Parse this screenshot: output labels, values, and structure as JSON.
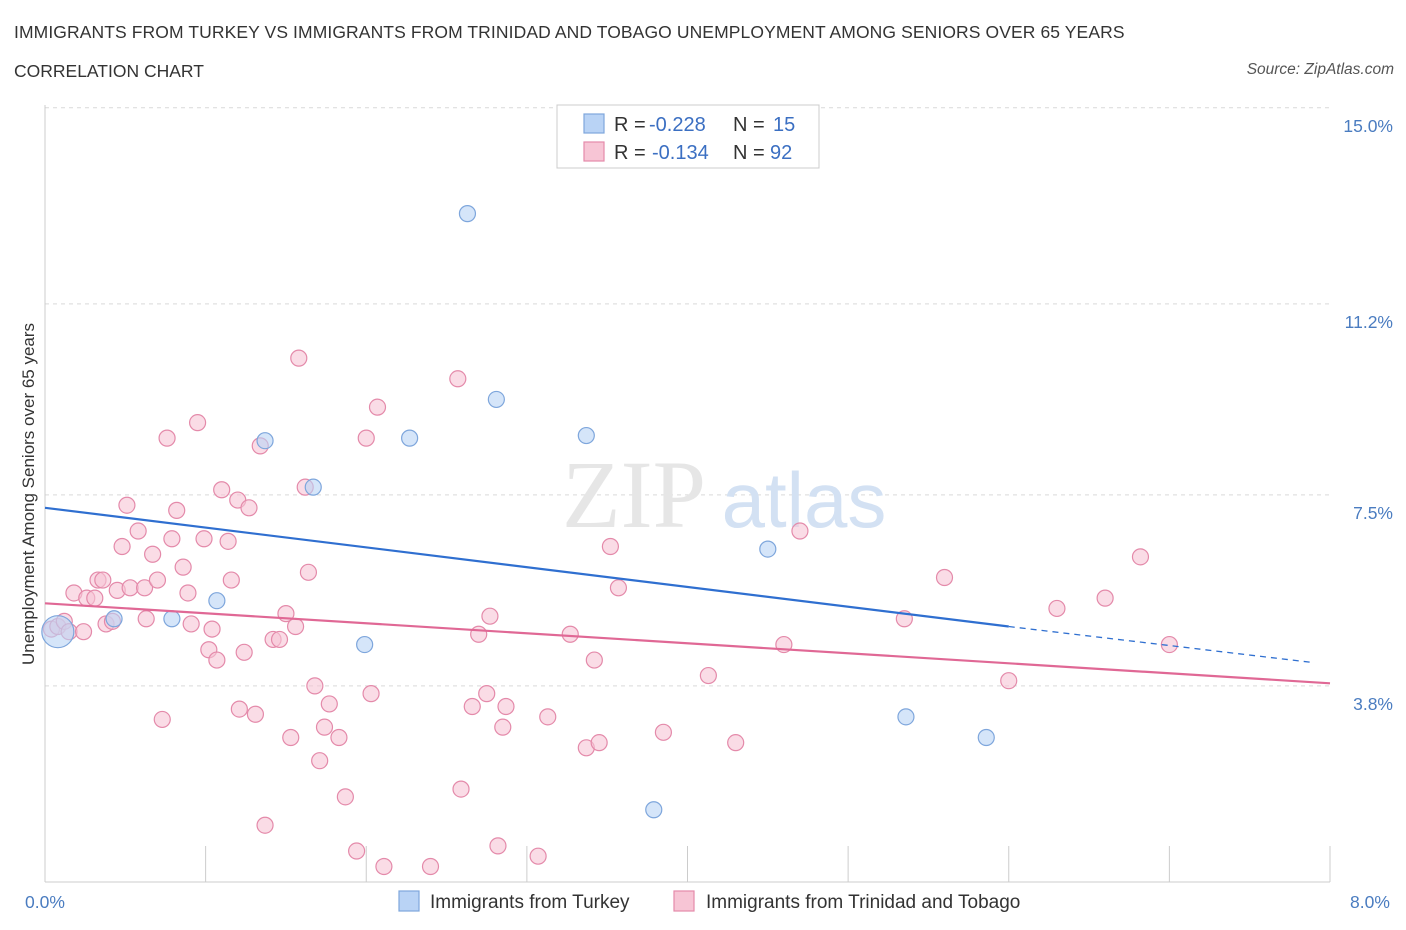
{
  "header": {
    "title": "IMMIGRANTS FROM TURKEY VS IMMIGRANTS FROM TRINIDAD AND TOBAGO UNEMPLOYMENT AMONG SENIORS OVER 65 YEARS",
    "subtitle": "CORRELATION CHART",
    "source": "Source: ZipAtlas.com"
  },
  "watermark": {
    "zip": "ZIP",
    "atlas": "atlas"
  },
  "colors": {
    "turkey_fill": "#b9d3f5",
    "turkey_stroke": "#7ea6dc",
    "turkey_line": "#2f6fd0",
    "trinidad_fill": "#f7c5d5",
    "trinidad_stroke": "#e48aaa",
    "trinidad_line": "#e06895",
    "grid": "#d9d9d9",
    "axis_text": "#4a7cc0"
  },
  "legend": {
    "rows": [
      {
        "r_label": "R =",
        "r_value": "-0.228",
        "n_label": "N =",
        "n_value": "15"
      },
      {
        "r_label": "R =",
        "r_value": "-0.134",
        "n_label": "N =",
        "n_value": "92"
      }
    ]
  },
  "chart_data": {
    "type": "scatter",
    "title": "IMMIGRANTS FROM TURKEY VS IMMIGRANTS FROM TRINIDAD AND TOBAGO UNEMPLOYMENT AMONG SENIORS OVER 65 YEARS",
    "subtitle": "CORRELATION CHART",
    "xlabel": "",
    "ylabel": "Unemployment Among Seniors over 65 years",
    "xlim": [
      0,
      8
    ],
    "ylim": [
      0,
      15.5
    ],
    "x_tick_labels": [
      "0.0%",
      "8.0%"
    ],
    "y_ticks": [
      3.8,
      7.5,
      11.2,
      15.0
    ],
    "y_tick_labels": [
      "3.8%",
      "7.5%",
      "11.2%",
      "15.0%"
    ],
    "legend_position": "top-center",
    "series": [
      {
        "name": "Immigrants from Turkey",
        "R": -0.228,
        "N": 15,
        "trend": {
          "x": [
            0,
            6.0
          ],
          "y": [
            7.25,
            4.95
          ],
          "dashed_to": [
            7.9,
            4.25
          ]
        },
        "points": [
          {
            "x": 0.08,
            "y": 4.85,
            "big": true
          },
          {
            "x": 0.43,
            "y": 5.1
          },
          {
            "x": 0.79,
            "y": 5.1
          },
          {
            "x": 1.07,
            "y": 5.45
          },
          {
            "x": 1.37,
            "y": 8.55
          },
          {
            "x": 1.67,
            "y": 7.65
          },
          {
            "x": 1.99,
            "y": 4.6
          },
          {
            "x": 2.27,
            "y": 8.6
          },
          {
            "x": 2.63,
            "y": 12.95
          },
          {
            "x": 2.81,
            "y": 9.35
          },
          {
            "x": 3.37,
            "y": 8.65
          },
          {
            "x": 3.79,
            "y": 1.4
          },
          {
            "x": 4.5,
            "y": 6.45
          },
          {
            "x": 5.36,
            "y": 3.2
          },
          {
            "x": 5.86,
            "y": 2.8
          }
        ]
      },
      {
        "name": "Immigrants from Trinidad and Tobago",
        "R": -0.134,
        "N": 92,
        "trend": {
          "x": [
            0,
            8.0
          ],
          "y": [
            5.4,
            3.85
          ]
        },
        "points": [
          {
            "x": 0.04,
            "y": 4.9
          },
          {
            "x": 0.08,
            "y": 4.95
          },
          {
            "x": 0.12,
            "y": 5.05
          },
          {
            "x": 0.15,
            "y": 4.85
          },
          {
            "x": 0.18,
            "y": 5.6
          },
          {
            "x": 0.24,
            "y": 4.85
          },
          {
            "x": 0.26,
            "y": 5.5
          },
          {
            "x": 0.31,
            "y": 5.5
          },
          {
            "x": 0.33,
            "y": 5.85
          },
          {
            "x": 0.36,
            "y": 5.85
          },
          {
            "x": 0.38,
            "y": 5.0
          },
          {
            "x": 0.42,
            "y": 5.05
          },
          {
            "x": 0.45,
            "y": 5.65
          },
          {
            "x": 0.48,
            "y": 6.5
          },
          {
            "x": 0.51,
            "y": 7.3
          },
          {
            "x": 0.53,
            "y": 5.7
          },
          {
            "x": 0.58,
            "y": 6.8
          },
          {
            "x": 0.62,
            "y": 5.7
          },
          {
            "x": 0.63,
            "y": 5.1
          },
          {
            "x": 0.67,
            "y": 6.35
          },
          {
            "x": 0.7,
            "y": 5.85
          },
          {
            "x": 0.73,
            "y": 3.15
          },
          {
            "x": 0.76,
            "y": 8.6
          },
          {
            "x": 0.79,
            "y": 6.65
          },
          {
            "x": 0.82,
            "y": 7.2
          },
          {
            "x": 0.86,
            "y": 6.1
          },
          {
            "x": 0.89,
            "y": 5.6
          },
          {
            "x": 0.91,
            "y": 5.0
          },
          {
            "x": 0.95,
            "y": 8.9
          },
          {
            "x": 0.99,
            "y": 6.65
          },
          {
            "x": 1.02,
            "y": 4.5
          },
          {
            "x": 1.04,
            "y": 4.9
          },
          {
            "x": 1.07,
            "y": 4.3
          },
          {
            "x": 1.1,
            "y": 7.6
          },
          {
            "x": 1.14,
            "y": 6.6
          },
          {
            "x": 1.16,
            "y": 5.85
          },
          {
            "x": 1.2,
            "y": 7.4
          },
          {
            "x": 1.21,
            "y": 3.35
          },
          {
            "x": 1.24,
            "y": 4.45
          },
          {
            "x": 1.27,
            "y": 7.25
          },
          {
            "x": 1.31,
            "y": 3.25
          },
          {
            "x": 1.34,
            "y": 8.45
          },
          {
            "x": 1.37,
            "y": 1.1
          },
          {
            "x": 1.42,
            "y": 4.7
          },
          {
            "x": 1.46,
            "y": 4.7
          },
          {
            "x": 1.5,
            "y": 5.2
          },
          {
            "x": 1.53,
            "y": 2.8
          },
          {
            "x": 1.56,
            "y": 4.95
          },
          {
            "x": 1.58,
            "y": 10.15
          },
          {
            "x": 1.62,
            "y": 7.65
          },
          {
            "x": 1.64,
            "y": 6.0
          },
          {
            "x": 1.68,
            "y": 3.8
          },
          {
            "x": 1.71,
            "y": 2.35
          },
          {
            "x": 1.74,
            "y": 3.0
          },
          {
            "x": 1.77,
            "y": 3.45
          },
          {
            "x": 1.83,
            "y": 2.8
          },
          {
            "x": 1.87,
            "y": 1.65
          },
          {
            "x": 1.94,
            "y": 0.6
          },
          {
            "x": 2.0,
            "y": 8.6
          },
          {
            "x": 2.03,
            "y": 3.65
          },
          {
            "x": 2.07,
            "y": 9.2
          },
          {
            "x": 2.11,
            "y": 0.3
          },
          {
            "x": 2.4,
            "y": 0.3
          },
          {
            "x": 2.57,
            "y": 9.75
          },
          {
            "x": 2.59,
            "y": 1.8
          },
          {
            "x": 2.66,
            "y": 3.4
          },
          {
            "x": 2.7,
            "y": 4.8
          },
          {
            "x": 2.75,
            "y": 3.65
          },
          {
            "x": 2.77,
            "y": 5.15
          },
          {
            "x": 2.82,
            "y": 0.7
          },
          {
            "x": 2.85,
            "y": 3.0
          },
          {
            "x": 2.87,
            "y": 3.4
          },
          {
            "x": 3.07,
            "y": 0.5
          },
          {
            "x": 3.13,
            "y": 3.2
          },
          {
            "x": 3.27,
            "y": 4.8
          },
          {
            "x": 3.37,
            "y": 2.6
          },
          {
            "x": 3.42,
            "y": 4.3
          },
          {
            "x": 3.45,
            "y": 2.7
          },
          {
            "x": 3.52,
            "y": 6.5
          },
          {
            "x": 3.57,
            "y": 5.7
          },
          {
            "x": 3.85,
            "y": 2.9
          },
          {
            "x": 4.13,
            "y": 4.0
          },
          {
            "x": 4.3,
            "y": 2.7
          },
          {
            "x": 4.6,
            "y": 4.6
          },
          {
            "x": 4.7,
            "y": 6.8
          },
          {
            "x": 5.35,
            "y": 5.1
          },
          {
            "x": 5.6,
            "y": 5.9
          },
          {
            "x": 6.0,
            "y": 3.9
          },
          {
            "x": 6.3,
            "y": 5.3
          },
          {
            "x": 6.6,
            "y": 5.5
          },
          {
            "x": 6.82,
            "y": 6.3
          },
          {
            "x": 7.0,
            "y": 4.6
          }
        ]
      }
    ]
  }
}
